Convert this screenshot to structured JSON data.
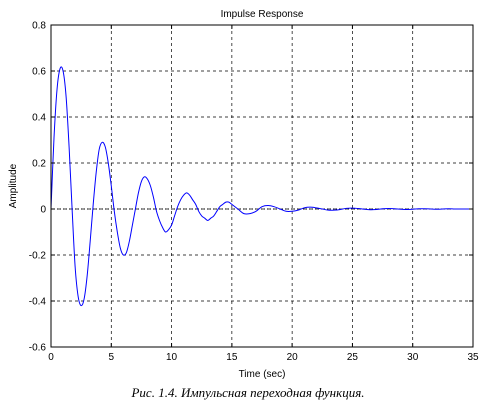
{
  "chart_data": {
    "type": "line",
    "title": "Impulse Response",
    "xlabel": "Time (sec)",
    "ylabel": "Amplitude",
    "xlim": [
      0,
      35
    ],
    "ylim": [
      -0.6,
      0.8
    ],
    "xticks": [
      0,
      5,
      10,
      15,
      20,
      25,
      30,
      35
    ],
    "yticks": [
      -0.6,
      -0.4,
      -0.2,
      0,
      0.2,
      0.4,
      0.6,
      0.8
    ],
    "grid": true,
    "series": [
      {
        "color": "#0000ff",
        "x": [
          0,
          0.25,
          0.5,
          0.75,
          1.0,
          1.25,
          1.5,
          1.75,
          2.0,
          2.25,
          2.5,
          2.75,
          3.0,
          3.25,
          3.5,
          3.75,
          4.0,
          4.25,
          4.5,
          4.75,
          5.0,
          5.25,
          5.5,
          5.75,
          6.0,
          6.25,
          6.5,
          6.75,
          7.0,
          7.25,
          7.5,
          7.75,
          8.0,
          8.25,
          8.5,
          8.75,
          9.0,
          9.25,
          9.5,
          9.75,
          10.0,
          10.25,
          10.5,
          10.75,
          11.0,
          11.25,
          11.5,
          11.75,
          12.0,
          12.25,
          12.5,
          12.75,
          13.0,
          13.25,
          13.5,
          13.75,
          14.0,
          14.25,
          14.5,
          14.75,
          15.0,
          15.5,
          16.0,
          16.5,
          17.0,
          17.5,
          18.0,
          18.5,
          19.0,
          19.5,
          20.0,
          20.5,
          21.0,
          21.5,
          22.0,
          22.5,
          23.0,
          23.5,
          24.0,
          24.5,
          25.0,
          25.5,
          26.0,
          26.5,
          27.0,
          27.5,
          28.0,
          28.5,
          29.0,
          29.5,
          30.0,
          30.5,
          31.0,
          31.5,
          32.0,
          32.5,
          33.0,
          33.5,
          34.0,
          34.5,
          35.0
        ],
        "y": [
          0.0,
          0.31,
          0.52,
          0.61,
          0.6,
          0.49,
          0.27,
          0.0,
          -0.25,
          -0.38,
          -0.42,
          -0.39,
          -0.29,
          -0.14,
          0.02,
          0.16,
          0.26,
          0.29,
          0.27,
          0.2,
          0.1,
          -0.01,
          -0.1,
          -0.17,
          -0.2,
          -0.19,
          -0.14,
          -0.07,
          0.0,
          0.07,
          0.12,
          0.14,
          0.13,
          0.1,
          0.05,
          -0.01,
          -0.05,
          -0.08,
          -0.1,
          -0.09,
          -0.07,
          -0.03,
          0.01,
          0.04,
          0.06,
          0.07,
          0.06,
          0.04,
          0.02,
          -0.01,
          -0.03,
          -0.04,
          -0.05,
          -0.04,
          -0.03,
          -0.01,
          0.01,
          0.02,
          0.03,
          0.03,
          0.02,
          0.0,
          -0.02,
          -0.02,
          -0.01,
          0.01,
          0.015,
          0.01,
          0.0,
          -0.01,
          -0.01,
          -0.005,
          0.005,
          0.008,
          0.005,
          0.0,
          -0.005,
          -0.005,
          -0.002,
          0.003,
          0.004,
          0.002,
          -0.001,
          -0.003,
          -0.002,
          0.001,
          0.002,
          0.001,
          -0.001,
          -0.002,
          -0.001,
          0.001,
          0.001,
          0.0,
          -0.001,
          0.0,
          0.001,
          0.0,
          0.0,
          0.0,
          0.0
        ]
      }
    ]
  },
  "caption": "Рис. 1.4. Импульсная переходная функция."
}
